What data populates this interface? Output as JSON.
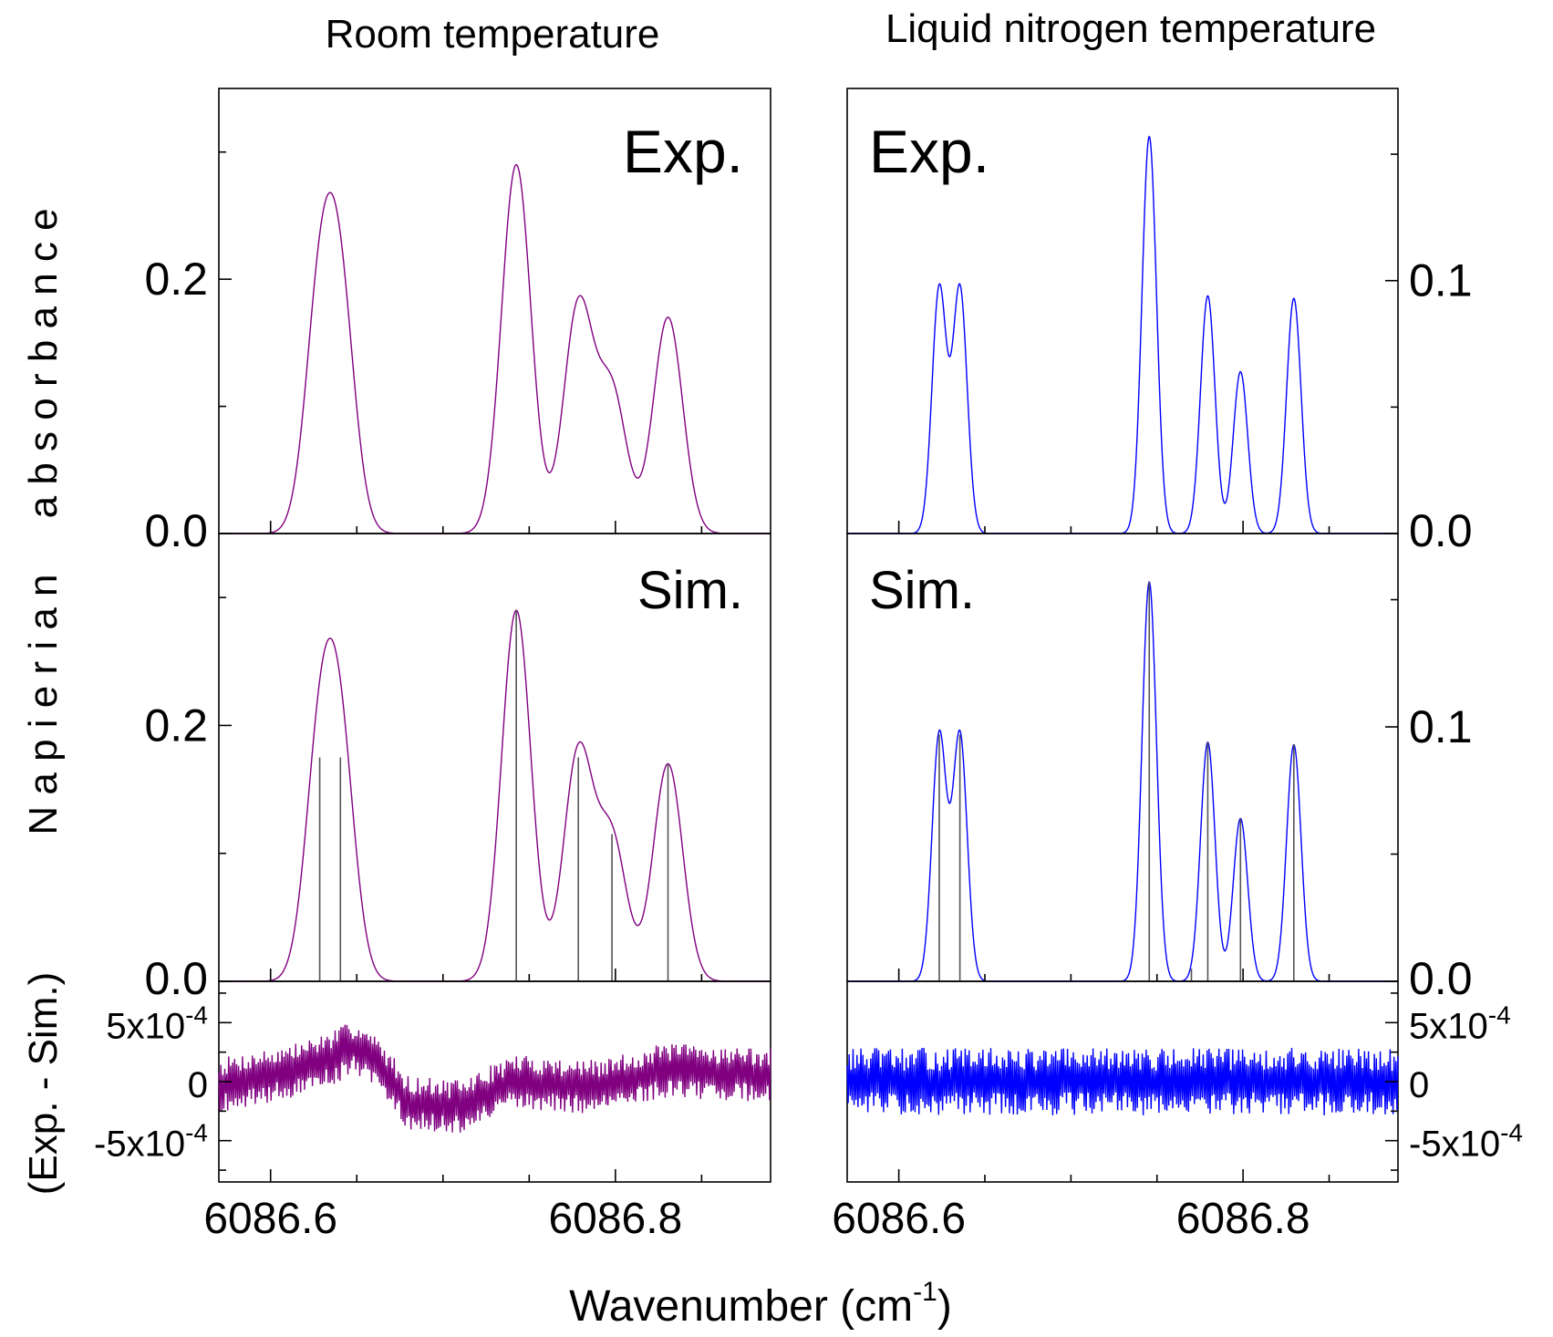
{
  "figure": {
    "columns": [
      {
        "title": "Room temperature"
      },
      {
        "title": "Liquid nitrogen temperature"
      }
    ],
    "xlabel": "Wavenumber (cm",
    "xlabel_sup": "-1",
    "xlabel_end": ")",
    "ylabel_main": "N a p i e r i a n     a b s o r b a n c e",
    "ylabel_resid": "(Exp. - Sim.)"
  },
  "chart_data": [
    {
      "id": "room-exp",
      "type": "line",
      "panel_label": "Exp.",
      "color": "#800080",
      "xlim": [
        6086.57,
        6086.89
      ],
      "ylim": [
        0,
        0.35
      ],
      "x_ticks": [
        6086.6,
        6086.8
      ],
      "y_ticks": [
        0.0,
        0.2
      ],
      "y_tick_labels": [
        "0.0",
        "0.2"
      ],
      "y_side": "left",
      "peaks": [
        {
          "center": 6086.6285,
          "height": 0.172,
          "width": 0.0085
        },
        {
          "center": 6086.6405,
          "height": 0.172,
          "width": 0.0085
        },
        {
          "center": 6086.7425,
          "height": 0.29,
          "width": 0.0085
        },
        {
          "center": 6086.7785,
          "height": 0.178,
          "width": 0.0085
        },
        {
          "center": 6086.798,
          "height": 0.11,
          "width": 0.0085
        },
        {
          "center": 6086.8305,
          "height": 0.17,
          "width": 0.0085
        }
      ]
    },
    {
      "id": "room-sim",
      "type": "line",
      "panel_label": "Sim.",
      "color": "#800080",
      "xlim": [
        6086.57,
        6086.89
      ],
      "ylim": [
        0,
        0.35
      ],
      "x_ticks": [
        6086.6,
        6086.8
      ],
      "y_ticks": [
        0.0,
        0.2
      ],
      "y_tick_labels": [
        "0.0",
        "0.2"
      ],
      "y_side": "left",
      "peaks": [
        {
          "center": 6086.6285,
          "height": 0.172,
          "width": 0.0085
        },
        {
          "center": 6086.6405,
          "height": 0.172,
          "width": 0.0085
        },
        {
          "center": 6086.7425,
          "height": 0.29,
          "width": 0.0085
        },
        {
          "center": 6086.7785,
          "height": 0.178,
          "width": 0.0085
        },
        {
          "center": 6086.798,
          "height": 0.11,
          "width": 0.0085
        },
        {
          "center": 6086.8305,
          "height": 0.17,
          "width": 0.0085
        }
      ],
      "sticks": {
        "color": "#555555",
        "x": [
          6086.6285,
          6086.6405,
          6086.7425,
          6086.7785,
          6086.798,
          6086.8305
        ],
        "y": [
          0.175,
          0.175,
          0.29,
          0.175,
          0.115,
          0.17
        ]
      }
    },
    {
      "id": "room-res",
      "type": "line",
      "color": "#800080",
      "xlim": [
        6086.57,
        6086.89
      ],
      "ylim": [
        -0.00085,
        0.00085
      ],
      "x_ticks": [
        6086.6,
        6086.8
      ],
      "y_ticks": [
        -0.0005,
        0,
        0.0005
      ],
      "y_tick_labels": [
        "-5x10",
        "0",
        "5x10"
      ],
      "y_tick_sup": [
        "-4",
        "",
        "-4"
      ],
      "y_side": "left",
      "noise_amplitude": 0.00021,
      "noise_seed": 7,
      "drift": [
        {
          "x": 6086.57,
          "y": -3e-05
        },
        {
          "x": 6086.615,
          "y": 0.0001
        },
        {
          "x": 6086.635,
          "y": 0.0002
        },
        {
          "x": 6086.65,
          "y": 0.0003
        },
        {
          "x": 6086.665,
          "y": 0.0001
        },
        {
          "x": 6086.68,
          "y": -0.00018
        },
        {
          "x": 6086.71,
          "y": -0.00022
        },
        {
          "x": 6086.74,
          "y": 0.0
        },
        {
          "x": 6086.79,
          "y": -5e-05
        },
        {
          "x": 6086.83,
          "y": 0.0001
        },
        {
          "x": 6086.89,
          "y": 5e-05
        }
      ]
    },
    {
      "id": "ln2-exp",
      "type": "line",
      "panel_label": "Exp.",
      "color": "#0000ff",
      "xlim": [
        6086.57,
        6086.89
      ],
      "ylim": [
        0,
        0.176
      ],
      "x_ticks": [
        6086.6,
        6086.8
      ],
      "y_ticks": [
        0.0,
        0.1
      ],
      "y_tick_labels": [
        "0.0",
        "0.1"
      ],
      "y_side": "right",
      "peaks": [
        {
          "center": 6086.6235,
          "height": 0.097,
          "width": 0.0042
        },
        {
          "center": 6086.6355,
          "height": 0.097,
          "width": 0.0042
        },
        {
          "center": 6086.7455,
          "height": 0.157,
          "width": 0.0042
        },
        {
          "center": 6086.7795,
          "height": 0.094,
          "width": 0.0042
        },
        {
          "center": 6086.7985,
          "height": 0.064,
          "width": 0.0042
        },
        {
          "center": 6086.8295,
          "height": 0.093,
          "width": 0.0042
        }
      ]
    },
    {
      "id": "ln2-sim",
      "type": "line",
      "panel_label": "Sim.",
      "color": "#0000ff",
      "xlim": [
        6086.57,
        6086.89
      ],
      "ylim": [
        0,
        0.176
      ],
      "x_ticks": [
        6086.6,
        6086.8
      ],
      "y_ticks": [
        0.0,
        0.1
      ],
      "y_tick_labels": [
        "0.0",
        "0.1"
      ],
      "y_side": "right",
      "peaks": [
        {
          "center": 6086.6235,
          "height": 0.097,
          "width": 0.0042
        },
        {
          "center": 6086.6355,
          "height": 0.097,
          "width": 0.0042
        },
        {
          "center": 6086.7455,
          "height": 0.157,
          "width": 0.0042
        },
        {
          "center": 6086.7795,
          "height": 0.094,
          "width": 0.0042
        },
        {
          "center": 6086.7985,
          "height": 0.064,
          "width": 0.0042
        },
        {
          "center": 6086.8295,
          "height": 0.093,
          "width": 0.0042
        }
      ],
      "sticks": {
        "color": "#555555",
        "x": [
          6086.6235,
          6086.6355,
          6086.7455,
          6086.77,
          6086.7795,
          6086.7985,
          6086.8295
        ],
        "y": [
          0.097,
          0.097,
          0.157,
          0.005,
          0.094,
          0.064,
          0.093
        ]
      }
    },
    {
      "id": "ln2-res",
      "type": "line",
      "color": "#0000ff",
      "xlim": [
        6086.57,
        6086.89
      ],
      "ylim": [
        -0.00085,
        0.00085
      ],
      "x_ticks": [
        6086.6,
        6086.8
      ],
      "y_ticks": [
        -0.0005,
        0,
        0.0005
      ],
      "y_tick_labels": [
        "-5x10",
        "0",
        "5x10"
      ],
      "y_tick_sup": [
        "-4",
        "",
        "-4"
      ],
      "y_side": "right",
      "noise_amplitude": 0.00026,
      "noise_seed": 13,
      "drift": [
        {
          "x": 6086.57,
          "y": 0.0
        },
        {
          "x": 6086.89,
          "y": 0.0
        }
      ]
    }
  ]
}
